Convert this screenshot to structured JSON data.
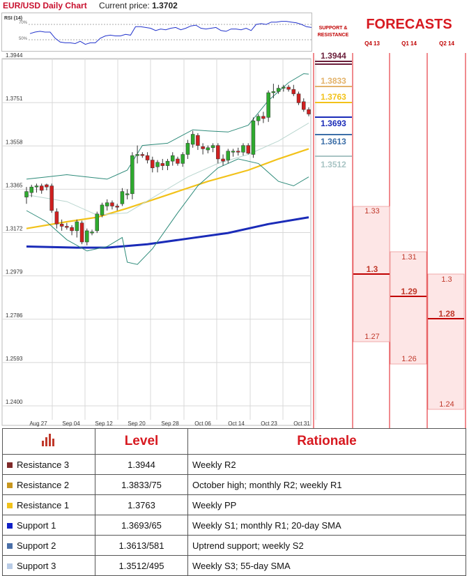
{
  "header": {
    "title": "EUR/USD Daily Chart",
    "price_label": "Current price:",
    "price_value": "1.3702"
  },
  "forecasts_title": "FORECASTS",
  "sr_title": "SUPPORT & RESISTANCE",
  "quarters": [
    "Q4 13",
    "Q1 14",
    "Q2 14"
  ],
  "sr_levels": [
    {
      "label": "1.3944",
      "value": 1.3944,
      "color": "#6b1f3b"
    },
    {
      "label": "1.3833",
      "value": 1.3833,
      "color": "#e3b36a"
    },
    {
      "label": "1.3763",
      "value": 1.3763,
      "color": "#f2c21a"
    },
    {
      "label": "1.3693",
      "value": 1.3693,
      "color": "#1a2bb8"
    },
    {
      "label": "1.3613",
      "value": 1.3613,
      "color": "#3d6fa8"
    },
    {
      "label": "1.3512",
      "value": 1.3512,
      "color": "#a8c4c4"
    }
  ],
  "forecasts": [
    {
      "quarter": "Q4 13",
      "high": "1.33",
      "mid": "1.3",
      "low": "1.27"
    },
    {
      "quarter": "Q1 14",
      "high": "1.31",
      "mid": "1.29",
      "low": "1.26"
    },
    {
      "quarter": "Q2 14",
      "high": "1.3",
      "mid": "1.28",
      "low": "1.24"
    }
  ],
  "table": {
    "headers": [
      "",
      "Level",
      "Rationale"
    ],
    "rows": [
      {
        "name": "Resistance 3",
        "level": "1.3944",
        "rationale": "Weekly R2",
        "color": "#7f2a2a"
      },
      {
        "name": "Resistance 2",
        "level": "1.3833/75",
        "rationale": "October high; monthly R2; weekly R1",
        "color": "#c8961e"
      },
      {
        "name": "Resistance 1",
        "level": "1.3763",
        "rationale": "Weekly PP",
        "color": "#f2c21a"
      },
      {
        "name": "Support 1",
        "level": "1.3693/65",
        "rationale": "Weekly S1; monthly R1; 20-day SMA",
        "color": "#1020c8"
      },
      {
        "name": "Support 2",
        "level": "1.3613/581",
        "rationale": "Uptrend support; weekly S2",
        "color": "#4a6fa8"
      },
      {
        "name": "Support 3",
        "level": "1.3512/495",
        "rationale": "Weekly S3; 55-day SMA",
        "color": "#b9cce6"
      }
    ]
  },
  "rsi": {
    "label": "RSI (14)",
    "levels": [
      "70%",
      "50%"
    ]
  },
  "chart_data": {
    "type": "candlestick",
    "title": "EUR/USD Daily Chart",
    "yticks": [
      "1.3944",
      "1.3751",
      "1.3558",
      "1.3365",
      "1.3172",
      "1.2979",
      "1.2786",
      "1.2593",
      "1.2400"
    ],
    "ylim": [
      1.24,
      1.3944
    ],
    "xticks": [
      "Aug 27",
      "Sep 04",
      "Sep 12",
      "Sep 20",
      "Sep 28",
      "Oct 06",
      "Oct 14",
      "Oct 23",
      "Oct 31"
    ],
    "grid": true,
    "candles": [
      [
        1.333,
        1.3375,
        1.33,
        1.3355
      ],
      [
        1.335,
        1.3385,
        1.333,
        1.3375
      ],
      [
        1.3375,
        1.339,
        1.335,
        1.338
      ],
      [
        1.338,
        1.339,
        1.3345,
        1.336
      ],
      [
        1.3385,
        1.339,
        1.336,
        1.3375
      ],
      [
        1.338,
        1.339,
        1.326,
        1.327
      ],
      [
        1.3265,
        1.328,
        1.319,
        1.321
      ],
      [
        1.321,
        1.323,
        1.318,
        1.32
      ],
      [
        1.32,
        1.3215,
        1.3185,
        1.3195
      ],
      [
        1.3195,
        1.3205,
        1.316,
        1.318
      ],
      [
        1.318,
        1.323,
        1.315,
        1.322
      ],
      [
        1.3215,
        1.3225,
        1.312,
        1.313
      ],
      [
        1.313,
        1.319,
        1.3115,
        1.318
      ],
      [
        1.317,
        1.3185,
        1.316,
        1.3175
      ],
      [
        1.318,
        1.3265,
        1.317,
        1.3255
      ],
      [
        1.325,
        1.3305,
        1.324,
        1.3295
      ],
      [
        1.329,
        1.332,
        1.327,
        1.3305
      ],
      [
        1.3305,
        1.3315,
        1.3275,
        1.329
      ],
      [
        1.329,
        1.33,
        1.327,
        1.3285
      ],
      [
        1.33,
        1.337,
        1.329,
        1.3355
      ],
      [
        1.334,
        1.3365,
        1.332,
        1.3345
      ],
      [
        1.3345,
        1.353,
        1.332,
        1.3515
      ],
      [
        1.3515,
        1.356,
        1.348,
        1.352
      ],
      [
        1.352,
        1.353,
        1.3505,
        1.3515
      ],
      [
        1.3515,
        1.353,
        1.348,
        1.3495
      ],
      [
        1.3495,
        1.351,
        1.344,
        1.346
      ],
      [
        1.3465,
        1.3495,
        1.344,
        1.3485
      ],
      [
        1.348,
        1.35,
        1.345,
        1.347
      ],
      [
        1.347,
        1.35,
        1.345,
        1.349
      ],
      [
        1.349,
        1.353,
        1.347,
        1.3515
      ],
      [
        1.35,
        1.351,
        1.347,
        1.348
      ],
      [
        1.348,
        1.353,
        1.3465,
        1.352
      ],
      [
        1.352,
        1.3585,
        1.35,
        1.357
      ],
      [
        1.3565,
        1.3625,
        1.355,
        1.361
      ],
      [
        1.3605,
        1.3615,
        1.354,
        1.356
      ],
      [
        1.3555,
        1.357,
        1.352,
        1.3545
      ],
      [
        1.354,
        1.356,
        1.3525,
        1.355
      ],
      [
        1.355,
        1.357,
        1.353,
        1.356
      ],
      [
        1.356,
        1.357,
        1.348,
        1.35
      ],
      [
        1.35,
        1.352,
        1.347,
        1.349
      ],
      [
        1.3495,
        1.3545,
        1.348,
        1.3535
      ],
      [
        1.353,
        1.3545,
        1.351,
        1.3535
      ],
      [
        1.3535,
        1.355,
        1.3515,
        1.353
      ],
      [
        1.353,
        1.357,
        1.3515,
        1.356
      ],
      [
        1.356,
        1.357,
        1.352,
        1.3525
      ],
      [
        1.352,
        1.3685,
        1.3505,
        1.367
      ],
      [
        1.367,
        1.37,
        1.365,
        1.369
      ],
      [
        1.369,
        1.371,
        1.366,
        1.368
      ],
      [
        1.3685,
        1.3805,
        1.3665,
        1.3795
      ],
      [
        1.3795,
        1.3835,
        1.377,
        1.38
      ],
      [
        1.38,
        1.383,
        1.379,
        1.3815
      ],
      [
        1.3815,
        1.383,
        1.38,
        1.382
      ],
      [
        1.382,
        1.383,
        1.38,
        1.381
      ],
      [
        1.381,
        1.383,
        1.378,
        1.379
      ],
      [
        1.379,
        1.38,
        1.374,
        1.375
      ],
      [
        1.3755,
        1.377,
        1.371,
        1.372
      ],
      [
        1.372,
        1.373,
        1.369,
        1.37
      ]
    ],
    "series": [
      {
        "name": "SMA 20",
        "color": "#f2c21a",
        "points": [
          [
            0,
            1.319
          ],
          [
            8,
            1.322
          ],
          [
            14,
            1.324
          ],
          [
            20,
            1.328
          ],
          [
            28,
            1.334
          ],
          [
            36,
            1.34
          ],
          [
            44,
            1.345
          ],
          [
            50,
            1.35
          ],
          [
            56,
            1.3545
          ]
        ]
      },
      {
        "name": "SMA 55",
        "color": "#1a2bb8",
        "points": [
          [
            0,
            1.311
          ],
          [
            10,
            1.3105
          ],
          [
            16,
            1.3105
          ],
          [
            24,
            1.312
          ],
          [
            32,
            1.3145
          ],
          [
            40,
            1.317
          ],
          [
            48,
            1.321
          ],
          [
            56,
            1.324
          ]
        ]
      },
      {
        "name": "Bollinger Upper",
        "color": "#2e8b7a",
        "points": [
          [
            0,
            1.341
          ],
          [
            4,
            1.342
          ],
          [
            8,
            1.343
          ],
          [
            12,
            1.342
          ],
          [
            16,
            1.341
          ],
          [
            20,
            1.345
          ],
          [
            23,
            1.356
          ],
          [
            28,
            1.357
          ],
          [
            33,
            1.363
          ],
          [
            36,
            1.3625
          ],
          [
            40,
            1.362
          ],
          [
            44,
            1.365
          ],
          [
            48,
            1.376
          ],
          [
            52,
            1.384
          ],
          [
            55,
            1.388
          ],
          [
            56,
            1.3878
          ]
        ]
      },
      {
        "name": "Bollinger Lower",
        "color": "#2e8b7a",
        "points": [
          [
            0,
            1.327
          ],
          [
            4,
            1.322
          ],
          [
            8,
            1.314
          ],
          [
            12,
            1.309
          ],
          [
            16,
            1.311
          ],
          [
            19,
            1.315
          ],
          [
            20,
            1.304
          ],
          [
            22,
            1.303
          ],
          [
            25,
            1.31
          ],
          [
            30,
            1.326
          ],
          [
            34,
            1.338
          ],
          [
            38,
            1.346
          ],
          [
            42,
            1.35
          ],
          [
            46,
            1.348
          ],
          [
            50,
            1.34
          ],
          [
            53,
            1.338
          ],
          [
            56,
            1.342
          ]
        ]
      },
      {
        "name": "Bollinger Mid",
        "color": "#b9d6cf",
        "points": [
          [
            0,
            1.334
          ],
          [
            8,
            1.331
          ],
          [
            14,
            1.325
          ],
          [
            20,
            1.326
          ],
          [
            26,
            1.334
          ],
          [
            32,
            1.342
          ],
          [
            38,
            1.348
          ],
          [
            44,
            1.352
          ],
          [
            50,
            1.358
          ],
          [
            56,
            1.366
          ]
        ]
      }
    ],
    "rsi_values": [
      58,
      60,
      61,
      60,
      60,
      52,
      47,
      46,
      46,
      45,
      48,
      44,
      46,
      46,
      52,
      55,
      56,
      55,
      55,
      57,
      56,
      67,
      67,
      66,
      65,
      62,
      64,
      63,
      65,
      66,
      63,
      65,
      68,
      69,
      65,
      64,
      65,
      66,
      62,
      61,
      64,
      64,
      63,
      65,
      62,
      70,
      71,
      70,
      73,
      73,
      74,
      74,
      73,
      72,
      70,
      67,
      66
    ]
  }
}
